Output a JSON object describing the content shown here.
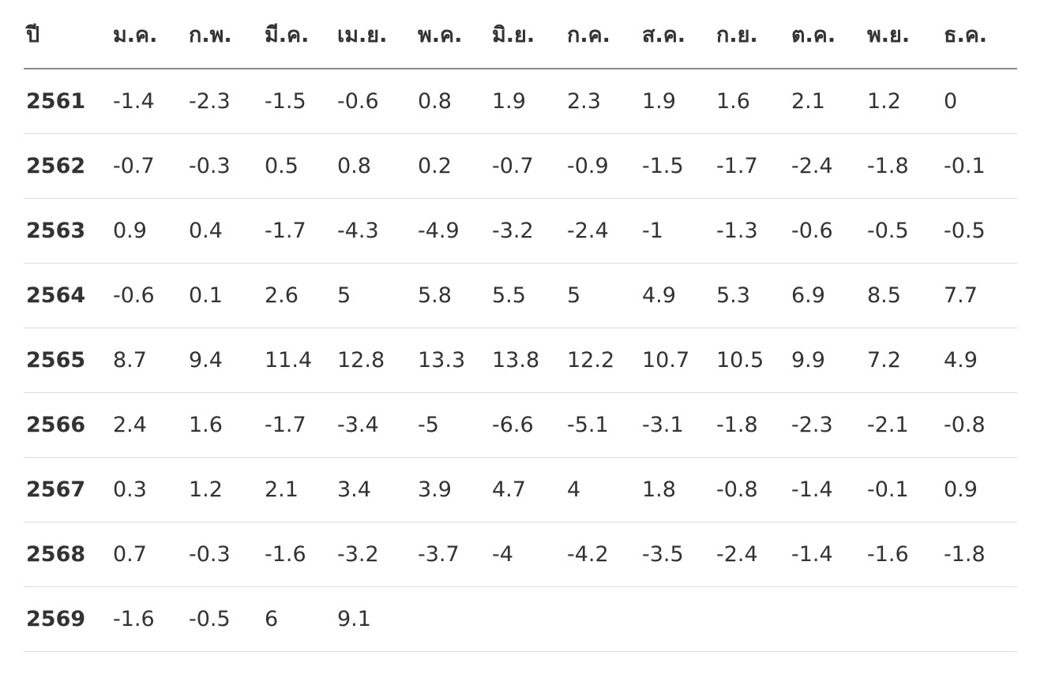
{
  "table": {
    "header": [
      "ปี",
      "ม.ค.",
      "ก.พ.",
      "มี.ค.",
      "เม.ย.",
      "พ.ค.",
      "มิ.ย.",
      "ก.ค.",
      "ส.ค.",
      "ก.ย.",
      "ต.ค.",
      "พ.ย.",
      "ธ.ค."
    ],
    "rows": [
      [
        "2561",
        "-1.4",
        "-2.3",
        "-1.5",
        "-0.6",
        "0.8",
        "1.9",
        "2.3",
        "1.9",
        "1.6",
        "2.1",
        "1.2",
        "0"
      ],
      [
        "2562",
        "-0.7",
        "-0.3",
        "0.5",
        "0.8",
        "0.2",
        "-0.7",
        "-0.9",
        "-1.5",
        "-1.7",
        "-2.4",
        "-1.8",
        "-0.1"
      ],
      [
        "2563",
        "0.9",
        "0.4",
        "-1.7",
        "-4.3",
        "-4.9",
        "-3.2",
        "-2.4",
        "-1",
        "-1.3",
        "-0.6",
        "-0.5",
        "-0.5"
      ],
      [
        "2564",
        "-0.6",
        "0.1",
        "2.6",
        "5",
        "5.8",
        "5.5",
        "5",
        "4.9",
        "5.3",
        "6.9",
        "8.5",
        "7.7"
      ],
      [
        "2565",
        "8.7",
        "9.4",
        "11.4",
        "12.8",
        "13.3",
        "13.8",
        "12.2",
        "10.7",
        "10.5",
        "9.9",
        "7.2",
        "4.9"
      ],
      [
        "2566",
        "2.4",
        "1.6",
        "-1.7",
        "-3.4",
        "-5",
        "-6.6",
        "-5.1",
        "-3.1",
        "-1.8",
        "-2.3",
        "-2.1",
        "-0.8"
      ],
      [
        "2567",
        "0.3",
        "1.2",
        "2.1",
        "3.4",
        "3.9",
        "4.7",
        "4",
        "1.8",
        "-0.8",
        "-1.4",
        "-0.1",
        "0.9"
      ],
      [
        "2568",
        "0.7",
        "-0.3",
        "-1.6",
        "-3.2",
        "-3.7",
        "-4",
        "-4.2",
        "-3.5",
        "-2.4",
        "-1.4",
        "-1.6",
        "-1.8"
      ],
      [
        "2569",
        "-1.6",
        "-0.5",
        "6",
        "9.1"
      ]
    ]
  }
}
